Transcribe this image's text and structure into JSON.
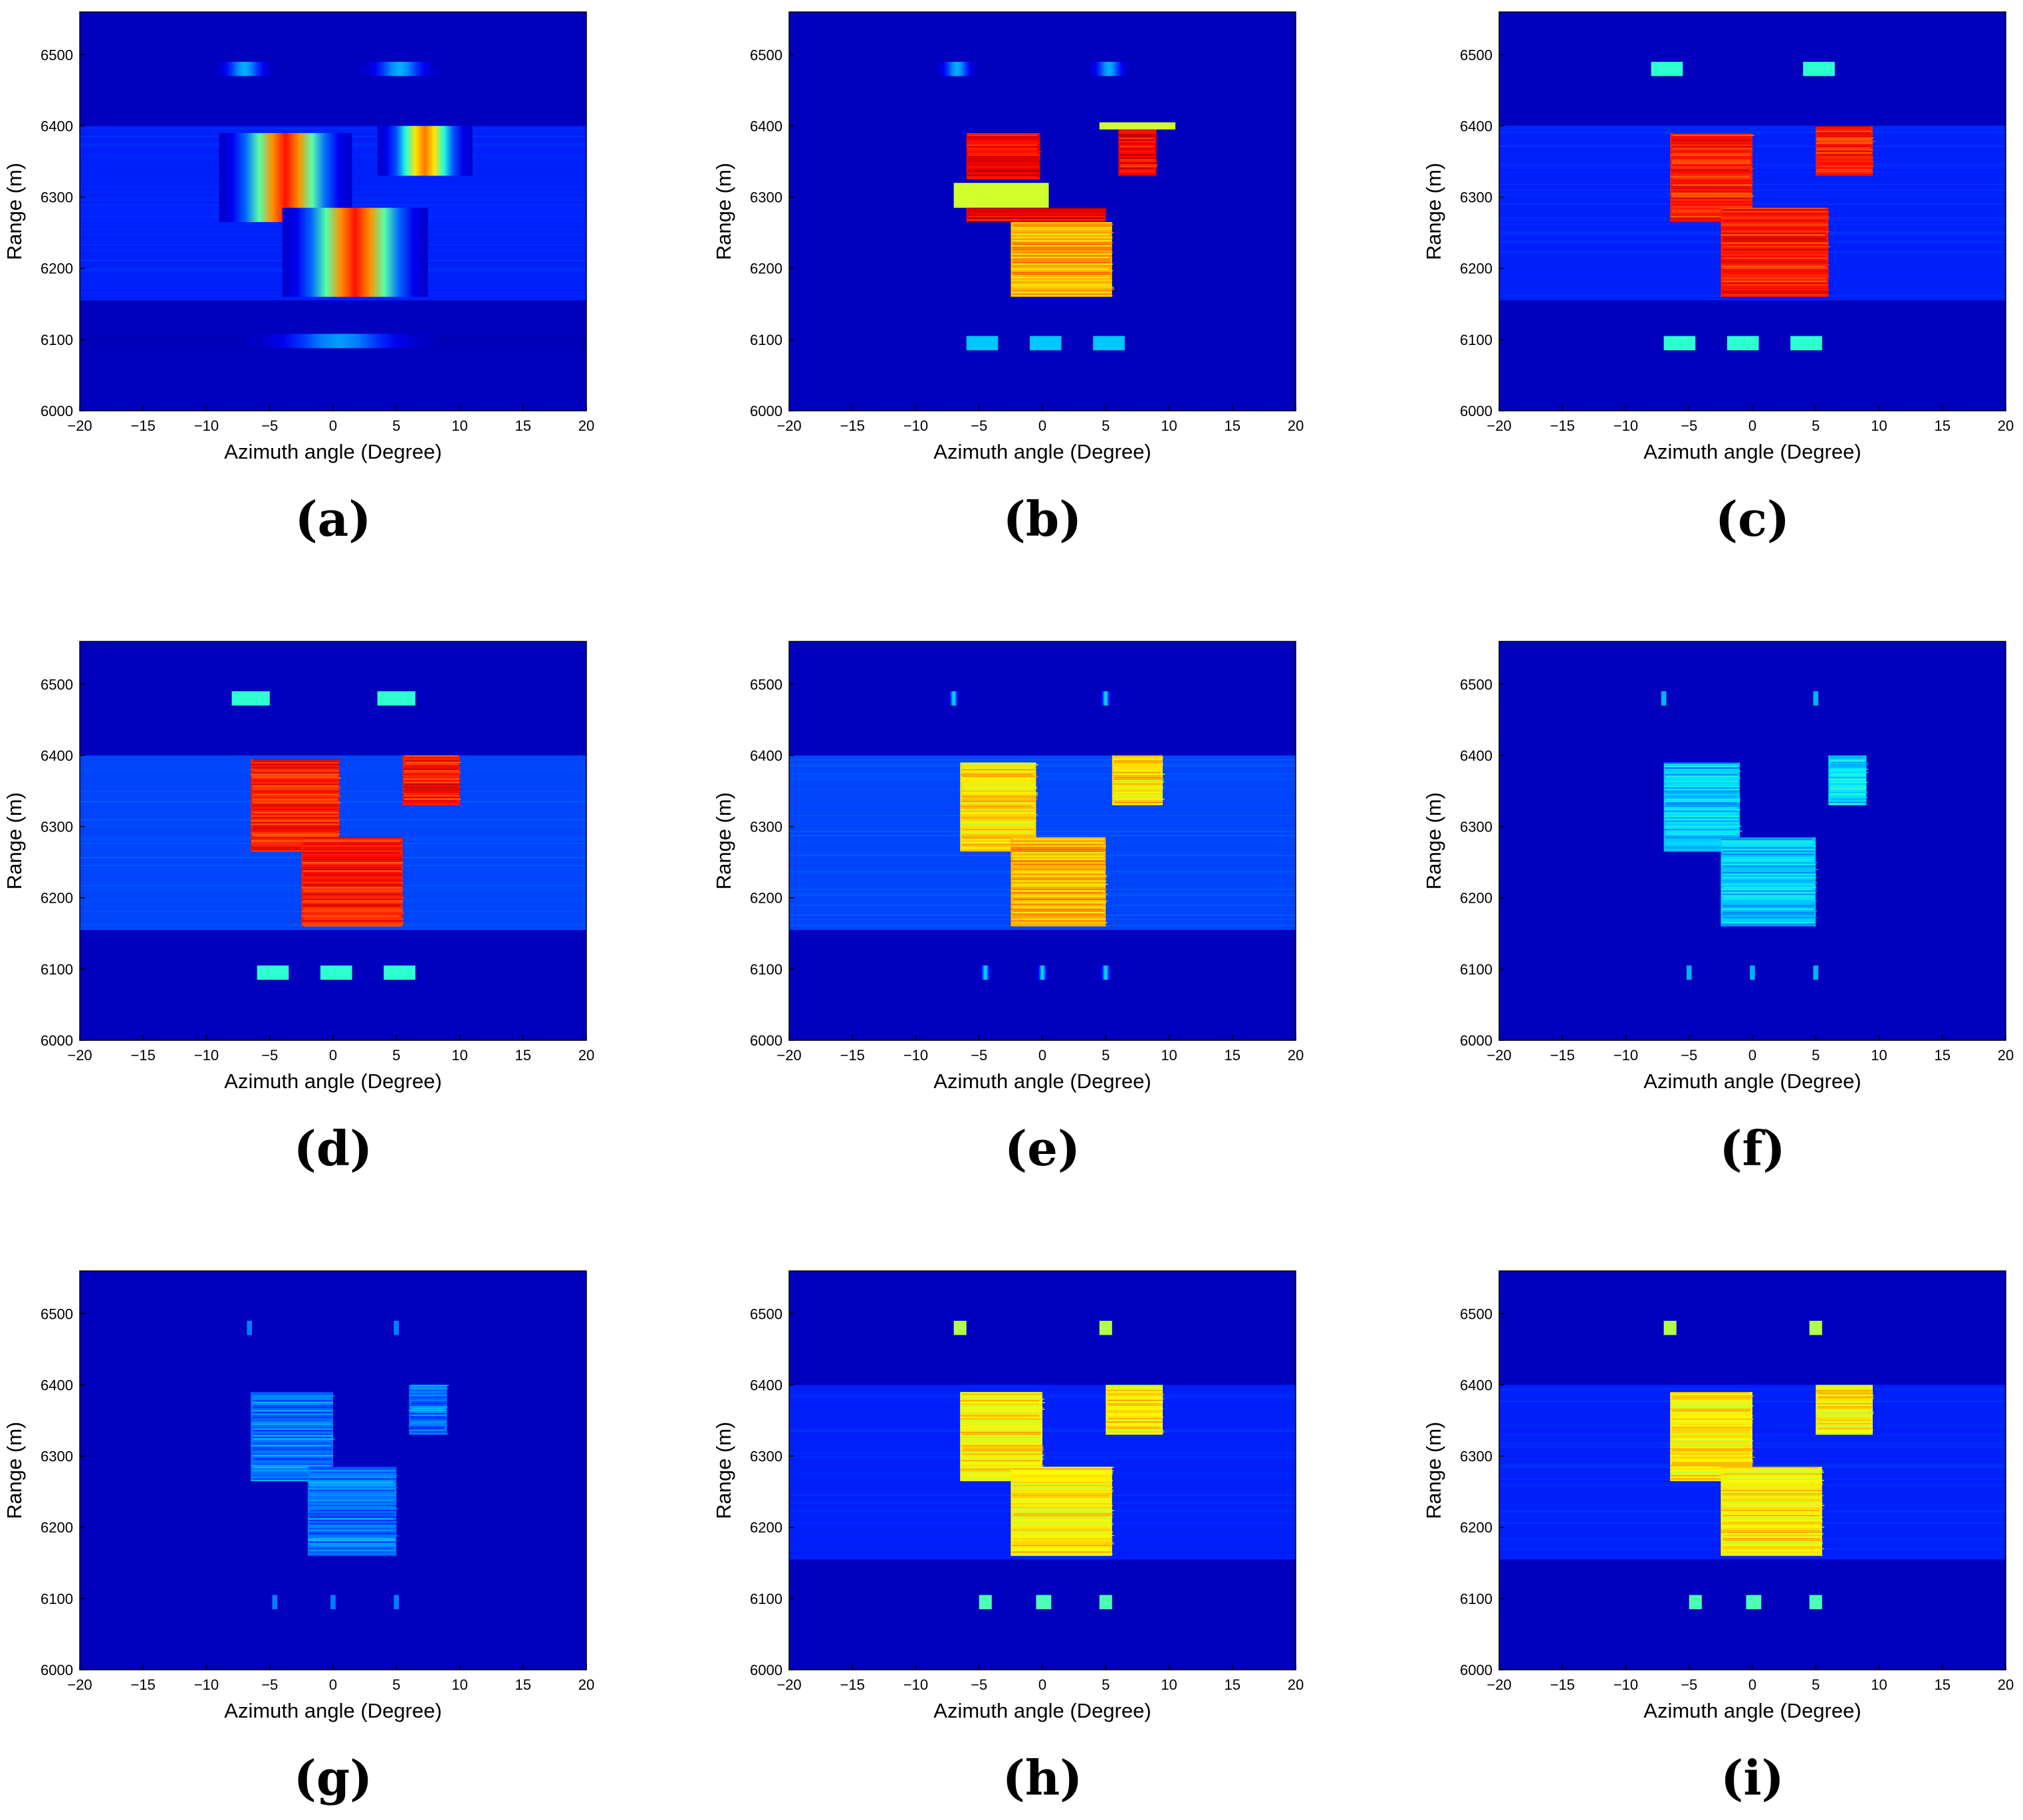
{
  "chart_data": [
    {
      "type": "heatmap",
      "panel_label": "(a)",
      "xlabel": "Azimuth angle (Degree)",
      "ylabel": "Range (m)",
      "xlim": [
        -20,
        20
      ],
      "ylim": [
        6000,
        6560
      ],
      "xticks": [
        "−20",
        "−15",
        "−10",
        "−5",
        "0",
        "5",
        "10",
        "15",
        "20"
      ],
      "yticks": [
        "6000",
        "6100",
        "6200",
        "6300",
        "6400",
        "6500"
      ],
      "colormap": "jet",
      "bands": [
        {
          "y0": 6265,
          "y1": 6400,
          "intensity": 0.16
        },
        {
          "y0": 6155,
          "y1": 6290,
          "intensity": 0.16
        },
        {
          "y0": 6085,
          "y1": 6105,
          "intensity": 0.05
        }
      ],
      "targets": [
        {
          "x0": -9,
          "x1": 1.5,
          "y0": 6265,
          "y1": 6390,
          "intensity": 0.86,
          "style": "gauss"
        },
        {
          "x0": 3.5,
          "x1": 11,
          "y0": 6330,
          "y1": 6400,
          "intensity": 0.76,
          "style": "gauss"
        },
        {
          "x0": -4,
          "x1": 7.5,
          "y0": 6160,
          "y1": 6285,
          "intensity": 0.86,
          "style": "gauss"
        },
        {
          "x0": -9.5,
          "x1": -4.5,
          "y0": 6470,
          "y1": 6490,
          "intensity": 0.3,
          "style": "gauss"
        },
        {
          "x0": 2,
          "x1": 8.5,
          "y0": 6470,
          "y1": 6490,
          "intensity": 0.3,
          "style": "gauss"
        },
        {
          "x0": -7,
          "x1": 8,
          "y0": 6088,
          "y1": 6108,
          "intensity": 0.28,
          "style": "gauss"
        }
      ]
    },
    {
      "type": "heatmap",
      "panel_label": "(b)",
      "xlabel": "Azimuth angle (Degree)",
      "ylabel": "Range (m)",
      "xlim": [
        -20,
        20
      ],
      "ylim": [
        6000,
        6560
      ],
      "xticks": [
        "−20",
        "−15",
        "−10",
        "−5",
        "0",
        "5",
        "10",
        "15",
        "20"
      ],
      "yticks": [
        "6000",
        "6100",
        "6200",
        "6300",
        "6400",
        "6500"
      ],
      "colormap": "jet",
      "bands": [],
      "targets": [
        {
          "x0": -6,
          "x1": -0.2,
          "y0": 6325,
          "y1": 6390,
          "intensity": 0.88,
          "style": "noise"
        },
        {
          "x0": -7,
          "x1": 0.5,
          "y0": 6285,
          "y1": 6320,
          "intensity": 0.58,
          "style": "solid"
        },
        {
          "x0": -6,
          "x1": 5,
          "y0": 6265,
          "y1": 6285,
          "intensity": 0.88,
          "style": "noise"
        },
        {
          "x0": -2.5,
          "x1": 5.5,
          "y0": 6160,
          "y1": 6265,
          "intensity": 0.7,
          "style": "noise"
        },
        {
          "x0": 6,
          "x1": 9,
          "y0": 6330,
          "y1": 6395,
          "intensity": 0.88,
          "style": "noise"
        },
        {
          "x0": 4.5,
          "x1": 10.5,
          "y0": 6395,
          "y1": 6405,
          "intensity": 0.58,
          "style": "solid"
        },
        {
          "x0": -8.5,
          "x1": -5,
          "y0": 6470,
          "y1": 6490,
          "intensity": 0.3,
          "style": "gauss"
        },
        {
          "x0": 3.5,
          "x1": 7,
          "y0": 6470,
          "y1": 6490,
          "intensity": 0.3,
          "style": "gauss"
        },
        {
          "x0": -6,
          "x1": -3.5,
          "y0": 6085,
          "y1": 6105,
          "intensity": 0.32,
          "style": "solid"
        },
        {
          "x0": -1,
          "x1": 1.5,
          "y0": 6085,
          "y1": 6105,
          "intensity": 0.32,
          "style": "solid"
        },
        {
          "x0": 4,
          "x1": 6.5,
          "y0": 6085,
          "y1": 6105,
          "intensity": 0.32,
          "style": "solid"
        }
      ]
    },
    {
      "type": "heatmap",
      "panel_label": "(c)",
      "xlabel": "Azimuth angle (Degree)",
      "ylabel": "Range (m)",
      "xlim": [
        -20,
        20
      ],
      "ylim": [
        6000,
        6560
      ],
      "xticks": [
        "−20",
        "−15",
        "−10",
        "−5",
        "0",
        "5",
        "10",
        "15",
        "20"
      ],
      "yticks": [
        "6000",
        "6100",
        "6200",
        "6300",
        "6400",
        "6500"
      ],
      "colormap": "jet",
      "bands": [
        {
          "y0": 6155,
          "y1": 6400,
          "intensity": 0.16
        }
      ],
      "targets": [
        {
          "x0": -6.5,
          "x1": 0,
          "y0": 6265,
          "y1": 6390,
          "intensity": 0.85,
          "style": "noise"
        },
        {
          "x0": 5,
          "x1": 9.5,
          "y0": 6330,
          "y1": 6400,
          "intensity": 0.85,
          "style": "noise"
        },
        {
          "x0": -2.5,
          "x1": 6,
          "y0": 6160,
          "y1": 6285,
          "intensity": 0.85,
          "style": "noise"
        },
        {
          "x0": -8,
          "x1": -5.5,
          "y0": 6470,
          "y1": 6490,
          "intensity": 0.42,
          "style": "solid"
        },
        {
          "x0": 4,
          "x1": 6.5,
          "y0": 6470,
          "y1": 6490,
          "intensity": 0.42,
          "style": "solid"
        },
        {
          "x0": -7,
          "x1": -4.5,
          "y0": 6085,
          "y1": 6105,
          "intensity": 0.42,
          "style": "solid"
        },
        {
          "x0": -2,
          "x1": 0.5,
          "y0": 6085,
          "y1": 6105,
          "intensity": 0.42,
          "style": "solid"
        },
        {
          "x0": 3,
          "x1": 5.5,
          "y0": 6085,
          "y1": 6105,
          "intensity": 0.42,
          "style": "solid"
        }
      ]
    },
    {
      "type": "heatmap",
      "panel_label": "(d)",
      "xlabel": "Azimuth angle (Degree)",
      "ylabel": "Range (m)",
      "xlim": [
        -20,
        20
      ],
      "ylim": [
        6000,
        6560
      ],
      "xticks": [
        "−20",
        "−15",
        "−10",
        "−5",
        "0",
        "5",
        "10",
        "15",
        "20"
      ],
      "yticks": [
        "6000",
        "6100",
        "6200",
        "6300",
        "6400",
        "6500"
      ],
      "colormap": "jet",
      "bands": [
        {
          "y0": 6155,
          "y1": 6400,
          "intensity": 0.2
        }
      ],
      "targets": [
        {
          "x0": -6.5,
          "x1": 0.5,
          "y0": 6265,
          "y1": 6395,
          "intensity": 0.85,
          "style": "noise"
        },
        {
          "x0": 5.5,
          "x1": 10,
          "y0": 6330,
          "y1": 6400,
          "intensity": 0.85,
          "style": "noise"
        },
        {
          "x0": -2.5,
          "x1": 5.5,
          "y0": 6160,
          "y1": 6285,
          "intensity": 0.85,
          "style": "noise"
        },
        {
          "x0": -8,
          "x1": -5,
          "y0": 6470,
          "y1": 6490,
          "intensity": 0.42,
          "style": "solid"
        },
        {
          "x0": 3.5,
          "x1": 6.5,
          "y0": 6470,
          "y1": 6490,
          "intensity": 0.42,
          "style": "solid"
        },
        {
          "x0": -6,
          "x1": -3.5,
          "y0": 6085,
          "y1": 6105,
          "intensity": 0.42,
          "style": "solid"
        },
        {
          "x0": -1,
          "x1": 1.5,
          "y0": 6085,
          "y1": 6105,
          "intensity": 0.42,
          "style": "solid"
        },
        {
          "x0": 4,
          "x1": 6.5,
          "y0": 6085,
          "y1": 6105,
          "intensity": 0.42,
          "style": "solid"
        }
      ]
    },
    {
      "type": "heatmap",
      "panel_label": "(e)",
      "xlabel": "Azimuth angle (Degree)",
      "ylabel": "Range (m)",
      "xlim": [
        -20,
        20
      ],
      "ylim": [
        6000,
        6560
      ],
      "xticks": [
        "−20",
        "−15",
        "−10",
        "−5",
        "0",
        "5",
        "10",
        "15",
        "20"
      ],
      "yticks": [
        "6000",
        "6100",
        "6200",
        "6300",
        "6400",
        "6500"
      ],
      "colormap": "jet",
      "bands": [
        {
          "y0": 6155,
          "y1": 6400,
          "intensity": 0.2
        }
      ],
      "targets": [
        {
          "x0": -6.5,
          "x1": -0.5,
          "y0": 6265,
          "y1": 6390,
          "intensity": 0.66,
          "style": "noise"
        },
        {
          "x0": 5.5,
          "x1": 9.5,
          "y0": 6330,
          "y1": 6400,
          "intensity": 0.66,
          "style": "noise"
        },
        {
          "x0": -2.5,
          "x1": 5,
          "y0": 6160,
          "y1": 6285,
          "intensity": 0.7,
          "style": "noise"
        },
        {
          "x0": -7.5,
          "x1": -6.5,
          "y0": 6470,
          "y1": 6490,
          "intensity": 0.35,
          "style": "gauss"
        },
        {
          "x0": 4.5,
          "x1": 5.5,
          "y0": 6470,
          "y1": 6490,
          "intensity": 0.35,
          "style": "gauss"
        },
        {
          "x0": -5,
          "x1": -4,
          "y0": 6085,
          "y1": 6105,
          "intensity": 0.35,
          "style": "gauss"
        },
        {
          "x0": -0.5,
          "x1": 0.5,
          "y0": 6085,
          "y1": 6105,
          "intensity": 0.35,
          "style": "gauss"
        },
        {
          "x0": 4.5,
          "x1": 5.5,
          "y0": 6085,
          "y1": 6105,
          "intensity": 0.35,
          "style": "gauss"
        }
      ]
    },
    {
      "type": "heatmap",
      "panel_label": "(f)",
      "xlabel": "Azimuth angle (Degree)",
      "ylabel": "Range (m)",
      "xlim": [
        -20,
        20
      ],
      "ylim": [
        6000,
        6560
      ],
      "xticks": [
        "−20",
        "−15",
        "−10",
        "−5",
        "0",
        "5",
        "10",
        "15",
        "20"
      ],
      "yticks": [
        "6000",
        "6100",
        "6200",
        "6300",
        "6400",
        "6500"
      ],
      "colormap": "jet",
      "bands": [],
      "targets": [
        {
          "x0": -7,
          "x1": -1,
          "y0": 6265,
          "y1": 6390,
          "intensity": 0.32,
          "style": "noise"
        },
        {
          "x0": 6,
          "x1": 9,
          "y0": 6330,
          "y1": 6400,
          "intensity": 0.35,
          "style": "noise"
        },
        {
          "x0": -2.5,
          "x1": 5,
          "y0": 6160,
          "y1": 6285,
          "intensity": 0.32,
          "style": "noise"
        },
        {
          "x0": -7.2,
          "x1": -6.8,
          "y0": 6470,
          "y1": 6490,
          "intensity": 0.3,
          "style": "solid"
        },
        {
          "x0": 4.8,
          "x1": 5.2,
          "y0": 6470,
          "y1": 6490,
          "intensity": 0.3,
          "style": "solid"
        },
        {
          "x0": -5.2,
          "x1": -4.8,
          "y0": 6085,
          "y1": 6105,
          "intensity": 0.3,
          "style": "solid"
        },
        {
          "x0": -0.2,
          "x1": 0.2,
          "y0": 6085,
          "y1": 6105,
          "intensity": 0.3,
          "style": "solid"
        },
        {
          "x0": 4.8,
          "x1": 5.2,
          "y0": 6085,
          "y1": 6105,
          "intensity": 0.3,
          "style": "solid"
        }
      ]
    },
    {
      "type": "heatmap",
      "panel_label": "(g)",
      "xlabel": "Azimuth angle (Degree)",
      "ylabel": "Range (m)",
      "xlim": [
        -20,
        20
      ],
      "ylim": [
        6000,
        6560
      ],
      "xticks": [
        "−20",
        "−15",
        "−10",
        "−5",
        "0",
        "5",
        "10",
        "15",
        "20"
      ],
      "yticks": [
        "6000",
        "6100",
        "6200",
        "6300",
        "6400",
        "6500"
      ],
      "colormap": "jet",
      "bands": [],
      "targets": [
        {
          "x0": -6.5,
          "x1": 0,
          "y0": 6265,
          "y1": 6390,
          "intensity": 0.24,
          "style": "noise"
        },
        {
          "x0": 6,
          "x1": 9,
          "y0": 6330,
          "y1": 6400,
          "intensity": 0.24,
          "style": "noise"
        },
        {
          "x0": -2,
          "x1": 5,
          "y0": 6160,
          "y1": 6285,
          "intensity": 0.24,
          "style": "noise"
        },
        {
          "x0": -6.8,
          "x1": -6.4,
          "y0": 6470,
          "y1": 6490,
          "intensity": 0.25,
          "style": "solid"
        },
        {
          "x0": 4.8,
          "x1": 5.2,
          "y0": 6470,
          "y1": 6490,
          "intensity": 0.25,
          "style": "solid"
        },
        {
          "x0": -4.8,
          "x1": -4.4,
          "y0": 6085,
          "y1": 6105,
          "intensity": 0.25,
          "style": "solid"
        },
        {
          "x0": -0.2,
          "x1": 0.2,
          "y0": 6085,
          "y1": 6105,
          "intensity": 0.25,
          "style": "solid"
        },
        {
          "x0": 4.8,
          "x1": 5.2,
          "y0": 6085,
          "y1": 6105,
          "intensity": 0.25,
          "style": "solid"
        }
      ]
    },
    {
      "type": "heatmap",
      "panel_label": "(h)",
      "xlabel": "Azimuth angle (Degree)",
      "ylabel": "Range (m)",
      "xlim": [
        -20,
        20
      ],
      "ylim": [
        6000,
        6560
      ],
      "xticks": [
        "−20",
        "−15",
        "−10",
        "−5",
        "0",
        "5",
        "10",
        "15",
        "20"
      ],
      "yticks": [
        "6000",
        "6100",
        "6200",
        "6300",
        "6400",
        "6500"
      ],
      "colormap": "jet",
      "bands": [
        {
          "y0": 6155,
          "y1": 6400,
          "intensity": 0.16
        }
      ],
      "targets": [
        {
          "x0": -6.5,
          "x1": 0,
          "y0": 6265,
          "y1": 6390,
          "intensity": 0.64,
          "style": "noise"
        },
        {
          "x0": 5,
          "x1": 9.5,
          "y0": 6330,
          "y1": 6400,
          "intensity": 0.64,
          "style": "noise"
        },
        {
          "x0": -2.5,
          "x1": 5.5,
          "y0": 6160,
          "y1": 6285,
          "intensity": 0.64,
          "style": "noise"
        },
        {
          "x0": -7,
          "x1": -6,
          "y0": 6470,
          "y1": 6490,
          "intensity": 0.55,
          "style": "solid"
        },
        {
          "x0": 4.5,
          "x1": 5.5,
          "y0": 6470,
          "y1": 6490,
          "intensity": 0.55,
          "style": "solid"
        },
        {
          "x0": -5,
          "x1": -4,
          "y0": 6085,
          "y1": 6105,
          "intensity": 0.45,
          "style": "solid"
        },
        {
          "x0": -0.5,
          "x1": 0.7,
          "y0": 6085,
          "y1": 6105,
          "intensity": 0.45,
          "style": "solid"
        },
        {
          "x0": 4.5,
          "x1": 5.5,
          "y0": 6085,
          "y1": 6105,
          "intensity": 0.45,
          "style": "solid"
        }
      ]
    },
    {
      "type": "heatmap",
      "panel_label": "(i)",
      "xlabel": "Azimuth angle (Degree)",
      "ylabel": "Range (m)",
      "xlim": [
        -20,
        20
      ],
      "ylim": [
        6000,
        6560
      ],
      "xticks": [
        "−20",
        "−15",
        "−10",
        "−5",
        "0",
        "5",
        "10",
        "15",
        "20"
      ],
      "yticks": [
        "6000",
        "6100",
        "6200",
        "6300",
        "6400",
        "6500"
      ],
      "colormap": "jet",
      "bands": [
        {
          "y0": 6155,
          "y1": 6400,
          "intensity": 0.16
        }
      ],
      "targets": [
        {
          "x0": -6.5,
          "x1": 0,
          "y0": 6265,
          "y1": 6390,
          "intensity": 0.64,
          "style": "noise"
        },
        {
          "x0": 5,
          "x1": 9.5,
          "y0": 6330,
          "y1": 6400,
          "intensity": 0.64,
          "style": "noise"
        },
        {
          "x0": -2.5,
          "x1": 5.5,
          "y0": 6160,
          "y1": 6285,
          "intensity": 0.64,
          "style": "noise"
        },
        {
          "x0": -7,
          "x1": -6,
          "y0": 6470,
          "y1": 6490,
          "intensity": 0.55,
          "style": "solid"
        },
        {
          "x0": 4.5,
          "x1": 5.5,
          "y0": 6470,
          "y1": 6490,
          "intensity": 0.55,
          "style": "solid"
        },
        {
          "x0": -5,
          "x1": -4,
          "y0": 6085,
          "y1": 6105,
          "intensity": 0.45,
          "style": "solid"
        },
        {
          "x0": -0.5,
          "x1": 0.7,
          "y0": 6085,
          "y1": 6105,
          "intensity": 0.45,
          "style": "solid"
        },
        {
          "x0": 4.5,
          "x1": 5.5,
          "y0": 6085,
          "y1": 6105,
          "intensity": 0.45,
          "style": "solid"
        }
      ]
    }
  ]
}
